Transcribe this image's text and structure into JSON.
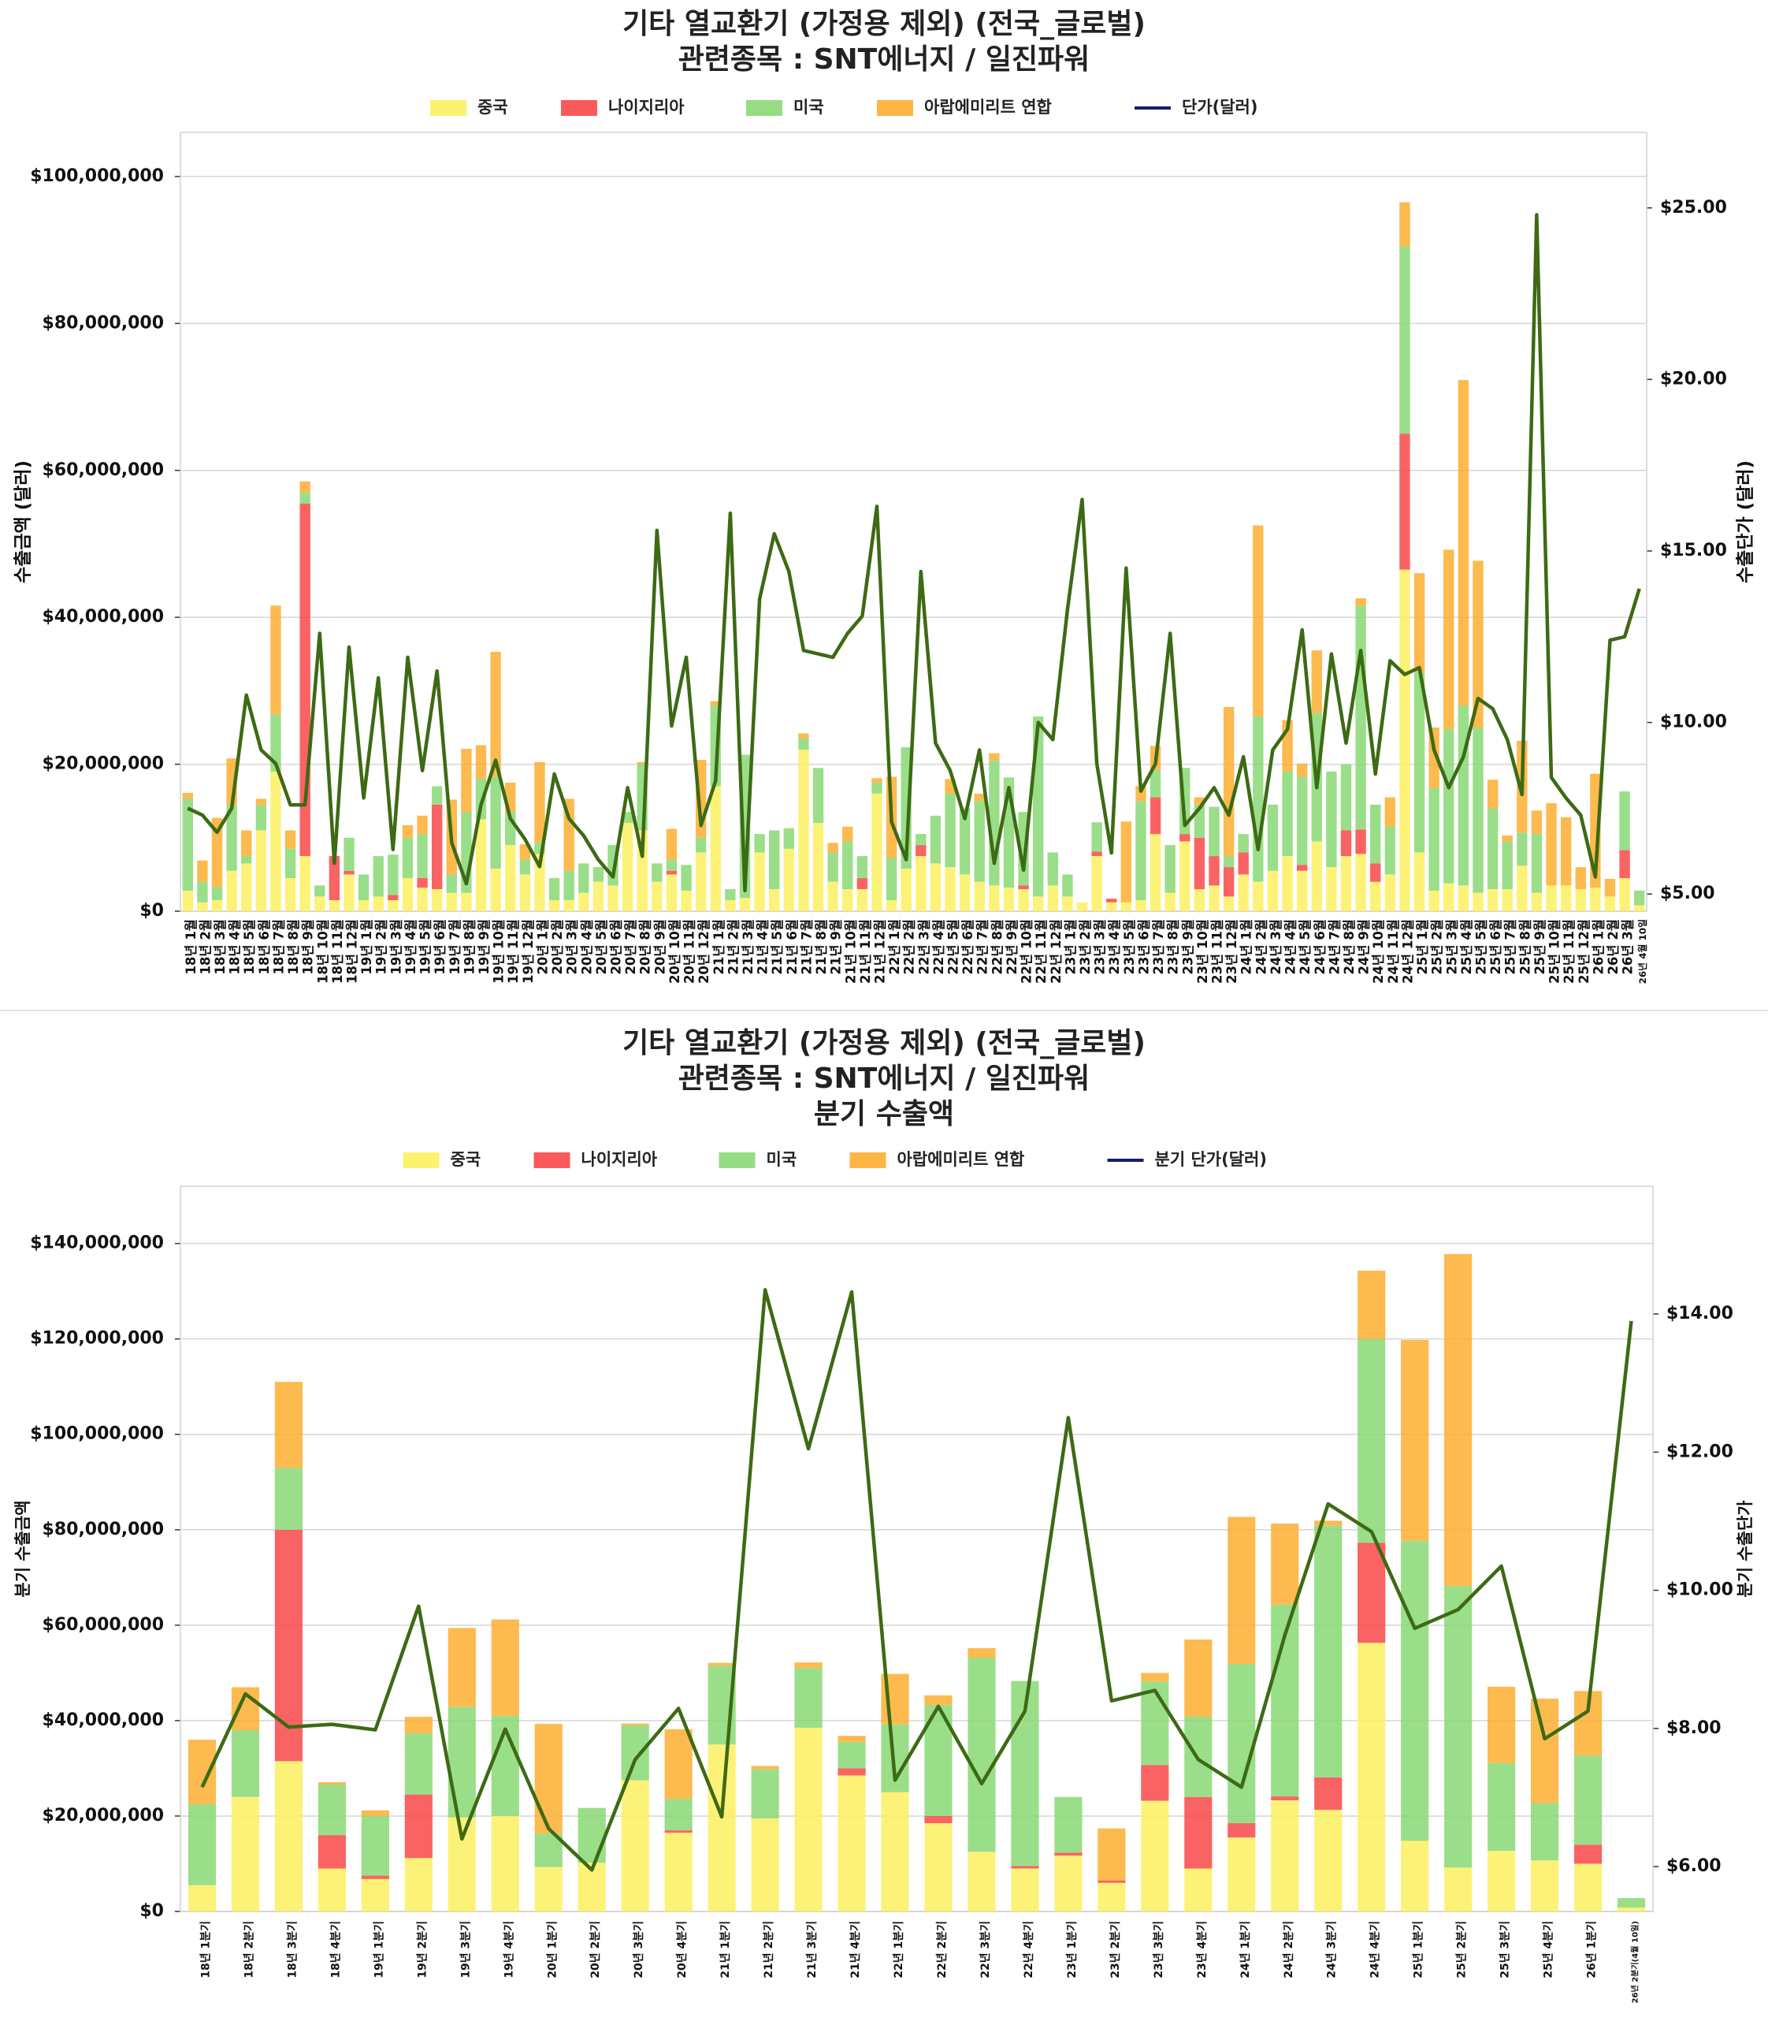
{
  "chart_data": [
    {
      "type": "bar",
      "stacked": true,
      "title": [
        "기타 열교환기 (가정용 제외) (전국_글로벌)",
        "관련종목 : SNT에너지 / 일진파워"
      ],
      "ylabel": "수출금액 (달러)",
      "y2label": "수출단가 (달러)",
      "ylim": [
        0,
        106000000
      ],
      "y2lim": [
        4.5,
        27.2
      ],
      "yticks": [
        "$0",
        "$20,000,000",
        "$40,000,000",
        "$60,000,000",
        "$80,000,000",
        "$100,000,000"
      ],
      "ytick_values": [
        0,
        20000000,
        40000000,
        60000000,
        80000000,
        100000000
      ],
      "y2ticks": [
        "$5.00",
        "$10.00",
        "$15.00",
        "$20.00",
        "$25.00"
      ],
      "y2tick_values": [
        5,
        10,
        15,
        20,
        25
      ],
      "legend": {
        "position": "top",
        "items": [
          {
            "label": "중국",
            "color": "#fdf060",
            "kind": "bar"
          },
          {
            "label": "나이지리아",
            "color": "#f94848",
            "kind": "bar"
          },
          {
            "label": "미국",
            "color": "#8ad874",
            "kind": "bar"
          },
          {
            "label": "아랍에미리트 연합",
            "color": "#fdae30",
            "kind": "bar"
          },
          {
            "label": "단가(달러)",
            "color": "#1a1a6e",
            "kind": "line"
          }
        ]
      },
      "line_color": "#3d6a14",
      "categories": [
        "18년 1월",
        "18년 2월",
        "18년 3월",
        "18년 4월",
        "18년 5월",
        "18년 6월",
        "18년 7월",
        "18년 8월",
        "18년 9월",
        "18년 10월",
        "18년 11월",
        "18년 12월",
        "19년 1월",
        "19년 2월",
        "19년 3월",
        "19년 4월",
        "19년 5월",
        "19년 6월",
        "19년 7월",
        "19년 8월",
        "19년 9월",
        "19년 10월",
        "19년 11월",
        "19년 12월",
        "20년 1월",
        "20년 2월",
        "20년 3월",
        "20년 4월",
        "20년 5월",
        "20년 6월",
        "20년 7월",
        "20년 8월",
        "20년 9월",
        "20년 10월",
        "20년 11월",
        "20년 12월",
        "21년 1월",
        "21년 2월",
        "21년 3월",
        "21년 4월",
        "21년 5월",
        "21년 6월",
        "21년 7월",
        "21년 8월",
        "21년 9월",
        "21년 10월",
        "21년 11월",
        "21년 12월",
        "22년 1월",
        "22년 2월",
        "22년 3월",
        "22년 4월",
        "22년 5월",
        "22년 6월",
        "22년 7월",
        "22년 8월",
        "22년 9월",
        "22년 10월",
        "22년 11월",
        "22년 12월",
        "23년 1월",
        "23년 2월",
        "23년 3월",
        "23년 4월",
        "23년 5월",
        "23년 6월",
        "23년 7월",
        "23년 8월",
        "23년 9월",
        "23년 10월",
        "23년 11월",
        "23년 12월",
        "24년 1월",
        "24년 2월",
        "24년 3월",
        "24년 4월",
        "24년 5월",
        "24년 6월",
        "24년 7월",
        "24년 8월",
        "24년 9월",
        "24년 10월",
        "24년 11월",
        "24년 12월",
        "25년 1월",
        "25년 2월",
        "25년 3월",
        "25년 4월",
        "25년 5월",
        "25년 6월",
        "25년 7월",
        "25년 8월",
        "25년 9월",
        "25년 10월",
        "25년 11월",
        "25년 12월",
        "26년 1월",
        "26년 2월",
        "26년 3월",
        "26년 4월 10일"
      ],
      "series": [
        {
          "name": "중국",
          "values": [
            2800000,
            1200000,
            1500000,
            5500000,
            6500000,
            11000000,
            19000000,
            4500000,
            7500000,
            2000000,
            1500000,
            5000000,
            1500000,
            2000000,
            1500000,
            4500000,
            3200000,
            3000000,
            2500000,
            2500000,
            12500000,
            5800000,
            9000000,
            5000000,
            7800000,
            1500000,
            1500000,
            2500000,
            4000000,
            3500000,
            12000000,
            11000000,
            4000000,
            5000000,
            2800000,
            8000000,
            17000000,
            1500000,
            1800000,
            8000000,
            3000000,
            8500000,
            22000000,
            12000000,
            4000000,
            3000000,
            3000000,
            16000000,
            1500000,
            5800000,
            7500000,
            6500000,
            6000000,
            5000000,
            4000000,
            3500000,
            3200000,
            3000000,
            2000000,
            3500000,
            2000000,
            1200000,
            7500000,
            1200000,
            1200000,
            1500000,
            10500000,
            2500000,
            9500000,
            3000000,
            3500000,
            2000000,
            5000000,
            4000000,
            5500000,
            7500000,
            5500000,
            9500000,
            6000000,
            7500000,
            7800000,
            4000000,
            5000000,
            46500000,
            8000000,
            2800000,
            3800000,
            3500000,
            2500000,
            3000000,
            3000000,
            6200000,
            2500000,
            3500000,
            3500000,
            3000000,
            3200000,
            2000000,
            4500000,
            800000
          ]
        },
        {
          "name": "나이지리아",
          "values": [
            0,
            0,
            0,
            0,
            0,
            0,
            0,
            0,
            48000000,
            0,
            6000000,
            500000,
            0,
            0,
            700000,
            0,
            1300000,
            11500000,
            0,
            0,
            0,
            0,
            0,
            0,
            0,
            0,
            0,
            0,
            0,
            0,
            0,
            0,
            0,
            500000,
            0,
            0,
            0,
            0,
            0,
            0,
            0,
            0,
            0,
            0,
            0,
            0,
            1500000,
            0,
            0,
            0,
            1500000,
            0,
            0,
            0,
            0,
            0,
            0,
            500000,
            0,
            0,
            0,
            0,
            600000,
            500000,
            0,
            0,
            5000000,
            0,
            1000000,
            7000000,
            4000000,
            4000000,
            3000000,
            0,
            0,
            0,
            800000,
            0,
            0,
            3500000,
            3300000,
            2500000,
            0,
            18500000,
            0,
            0,
            0,
            0,
            0,
            0,
            0,
            0,
            0,
            0,
            0,
            0,
            0,
            0,
            3800000,
            0
          ]
        },
        {
          "name": "미국",
          "values": [
            12500000,
            2800000,
            1800000,
            9000000,
            1000000,
            3500000,
            7800000,
            4000000,
            1500000,
            1500000,
            0,
            4500000,
            3500000,
            5500000,
            5500000,
            5500000,
            6000000,
            2500000,
            2500000,
            11000000,
            5500000,
            12500000,
            4500000,
            2000000,
            1500000,
            3000000,
            4000000,
            4000000,
            2000000,
            5500000,
            1500000,
            9000000,
            2500000,
            1500000,
            3500000,
            2000000,
            11000000,
            1500000,
            19500000,
            2500000,
            8000000,
            2800000,
            1500000,
            7500000,
            4000000,
            6500000,
            3000000,
            1500000,
            5800000,
            16500000,
            1500000,
            6500000,
            10000000,
            9000000,
            11000000,
            17000000,
            15000000,
            10000000,
            24500000,
            4500000,
            3000000,
            0,
            4000000,
            0,
            0,
            13500000,
            3700000,
            6500000,
            9000000,
            4500000,
            6700000,
            1500000,
            2500000,
            22500000,
            9000000,
            11500000,
            12000000,
            17500000,
            13000000,
            9000000,
            30500000,
            8000000,
            6500000,
            25500000,
            24500000,
            14000000,
            21000000,
            24500000,
            22500000,
            11000000,
            6500000,
            4500000,
            8000000,
            0,
            0,
            0,
            0,
            0,
            8000000,
            2000000
          ]
        },
        {
          "name": "아랍에미리트 연합",
          "values": [
            800000,
            2900000,
            9400000,
            6300000,
            3500000,
            800000,
            14800000,
            2500000,
            1500000,
            0,
            0,
            0,
            0,
            0,
            0,
            1700000,
            2500000,
            0,
            10200000,
            8600000,
            4600000,
            17000000,
            4000000,
            2100000,
            11000000,
            0,
            9800000,
            0,
            0,
            0,
            0,
            300000,
            0,
            4200000,
            0,
            10600000,
            600000,
            0,
            0,
            0,
            0,
            0,
            700000,
            0,
            1300000,
            2000000,
            0,
            600000,
            11000000,
            0,
            0,
            0,
            2000000,
            0,
            1000000,
            1000000,
            0,
            0,
            0,
            0,
            0,
            0,
            0,
            0,
            11000000,
            2000000,
            3300000,
            0,
            0,
            1000000,
            0,
            20300000,
            0,
            26000000,
            0,
            7000000,
            1800000,
            8500000,
            0,
            0,
            1000000,
            0,
            4000000,
            6000000,
            13500000,
            8200000,
            24400000,
            44300000,
            22700000,
            3900000,
            800000,
            12500000,
            3200000,
            11200000,
            9300000,
            3000000,
            15500000,
            2400000,
            0,
            0
          ]
        },
        {
          "name": "단가(달러)",
          "kind": "line",
          "values": [
            7.5,
            7.3,
            6.8,
            7.5,
            10.8,
            9.2,
            8.8,
            7.6,
            7.6,
            12.6,
            5.9,
            12.2,
            7.8,
            11.3,
            6.3,
            11.9,
            8.6,
            11.5,
            6.5,
            5.3,
            7.6,
            8.9,
            7.2,
            6.6,
            5.8,
            8.5,
            7.2,
            6.7,
            6.0,
            5.5,
            8.1,
            6.1,
            15.6,
            9.9,
            11.9,
            7.0,
            8.3,
            16.1,
            5.1,
            13.6,
            15.5,
            14.4,
            12.1,
            12.0,
            11.9,
            12.6,
            13.1,
            16.3,
            7.1,
            6.0,
            14.4,
            9.4,
            8.6,
            7.2,
            9.2,
            5.9,
            8.1,
            5.7,
            10.0,
            9.5,
            13.3,
            16.5,
            8.8,
            6.2,
            14.5,
            8.0,
            8.8,
            12.6,
            7.0,
            7.5,
            8.1,
            7.3,
            9.0,
            6.3,
            9.2,
            9.8,
            12.7,
            8.1,
            12.0,
            9.4,
            12.1,
            8.5,
            11.8,
            11.4,
            11.6,
            9.2,
            8.1,
            9.0,
            10.7,
            10.4,
            9.5,
            7.9,
            24.8,
            8.4,
            7.8,
            7.3,
            5.5,
            12.4,
            12.5,
            13.9
          ]
        }
      ]
    },
    {
      "type": "bar",
      "stacked": true,
      "title": [
        "기타 열교환기 (가정용 제외) (전국_글로벌)",
        "관련종목 : SNT에너지 / 일진파워",
        "분기 수출액"
      ],
      "ylabel": "분기 수출금액",
      "y2label": "분기 수출단가",
      "ylim": [
        0,
        152000000
      ],
      "y2lim": [
        5.35,
        15.85
      ],
      "yticks": [
        "$0",
        "$20,000,000",
        "$40,000,000",
        "$60,000,000",
        "$80,000,000",
        "$100,000,000",
        "$120,000,000",
        "$140,000,000"
      ],
      "ytick_values": [
        0,
        20000000,
        40000000,
        60000000,
        80000000,
        100000000,
        120000000,
        140000000
      ],
      "y2ticks": [
        "$6.00",
        "$8.00",
        "$10.00",
        "$12.00",
        "$14.00"
      ],
      "y2tick_values": [
        6,
        8,
        10,
        12,
        14
      ],
      "legend": {
        "position": "top",
        "items": [
          {
            "label": "중국",
            "color": "#fdf060",
            "kind": "bar"
          },
          {
            "label": "나이지리아",
            "color": "#f94848",
            "kind": "bar"
          },
          {
            "label": "미국",
            "color": "#8ad874",
            "kind": "bar"
          },
          {
            "label": "아랍에미리트 연합",
            "color": "#fdae30",
            "kind": "bar"
          },
          {
            "label": "분기 단가(달러)",
            "color": "#1a1a6e",
            "kind": "line"
          }
        ]
      },
      "line_color": "#3d6a14",
      "categories": [
        "18년 1분기",
        "18년 2분기",
        "18년 3분기",
        "18년 4분기",
        "19년 1분기",
        "19년 2분기",
        "19년 3분기",
        "19년 4분기",
        "20년 1분기",
        "20년 2분기",
        "20년 3분기",
        "20년 4분기",
        "21년 1분기",
        "21년 2분기",
        "21년 3분기",
        "21년 4분기",
        "22년 1분기",
        "22년 2분기",
        "22년 3분기",
        "22년 4분기",
        "23년 1분기",
        "23년 2분기",
        "23년 3분기",
        "23년 4분기",
        "24년 1분기",
        "24년 2분기",
        "24년 3분기",
        "24년 4분기",
        "25년 1분기",
        "25년 2분기",
        "25년 3분기",
        "25년 4분기",
        "26년 1분기",
        "26년 2분기(4월 10일)"
      ],
      "series": [
        {
          "name": "중국",
          "values": [
            5500000,
            24000000,
            31500000,
            9000000,
            6800000,
            11200000,
            19700000,
            20000000,
            9300000,
            10200000,
            27500000,
            16500000,
            35000000,
            19500000,
            38500000,
            28500000,
            25000000,
            18500000,
            12500000,
            9000000,
            11700000,
            6000000,
            23200000,
            9000000,
            15500000,
            23300000,
            21300000,
            56300000,
            14800000,
            9200000,
            12700000,
            10700000,
            10000000,
            800000
          ]
        },
        {
          "name": "나이지리아",
          "values": [
            0,
            0,
            48500000,
            7000000,
            700000,
            13300000,
            0,
            0,
            0,
            0,
            0,
            500000,
            0,
            0,
            0,
            1500000,
            0,
            1500000,
            0,
            500000,
            600000,
            500000,
            7500000,
            15000000,
            3000000,
            800000,
            6800000,
            21000000,
            0,
            0,
            0,
            0,
            4000000,
            0
          ]
        },
        {
          "name": "미국",
          "values": [
            17000000,
            14000000,
            13000000,
            10600000,
            12500000,
            12800000,
            23200000,
            21000000,
            7000000,
            11500000,
            11500000,
            6600000,
            16500000,
            10300000,
            12500000,
            5500000,
            14200000,
            23300000,
            40700000,
            38800000,
            11700000,
            0,
            17500000,
            16800000,
            33400000,
            40200000,
            52800000,
            42700000,
            62900000,
            59000000,
            18400000,
            12000000,
            18700000,
            2000000
          ]
        },
        {
          "name": "아랍에미리트 연합",
          "values": [
            13500000,
            9000000,
            18000000,
            500000,
            1200000,
            3500000,
            16500000,
            20200000,
            23000000,
            0,
            400000,
            14600000,
            600000,
            700000,
            1200000,
            1300000,
            10600000,
            2000000,
            2000000,
            0,
            0,
            10900000,
            1800000,
            16200000,
            30800000,
            17000000,
            1000000,
            14300000,
            42100000,
            69600000,
            16000000,
            21900000,
            13500000,
            0
          ]
        },
        {
          "name": "분기 단가(달러)",
          "kind": "line",
          "values": [
            7.15,
            8.5,
            8.02,
            8.06,
            7.98,
            9.77,
            6.4,
            7.99,
            6.55,
            5.95,
            7.55,
            8.29,
            6.72,
            14.35,
            12.05,
            14.32,
            7.25,
            8.32,
            7.2,
            8.25,
            12.5,
            8.4,
            8.55,
            7.55,
            7.15,
            9.35,
            11.25,
            10.85,
            9.45,
            9.72,
            10.35,
            7.85,
            8.25,
            13.9
          ]
        }
      ]
    }
  ]
}
